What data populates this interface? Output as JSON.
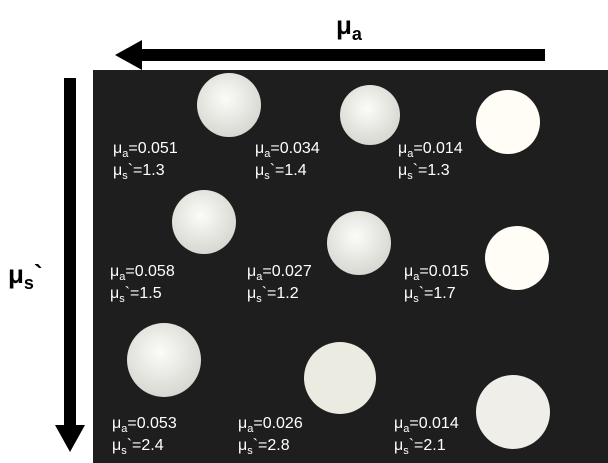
{
  "labels": {
    "mua": {
      "symbol": "μ",
      "sub": "a",
      "eq": "="
    },
    "mus": {
      "symbol": "μ",
      "sub": "s",
      "prime": "`",
      "eq": "="
    }
  },
  "samples": [
    {
      "mua": "0.051",
      "mus": "1.3"
    },
    {
      "mua": "0.034",
      "mus": "1.4"
    },
    {
      "mua": "0.014",
      "mus": "1.3"
    },
    {
      "mua": "0.058",
      "mus": "1.5"
    },
    {
      "mua": "0.027",
      "mus": "1.2"
    },
    {
      "mua": "0.015",
      "mus": "1.7"
    },
    {
      "mua": "0.053",
      "mus": "2.4"
    },
    {
      "mua": "0.026",
      "mus": "2.8"
    },
    {
      "mua": "0.014",
      "mus": "2.1"
    }
  ]
}
